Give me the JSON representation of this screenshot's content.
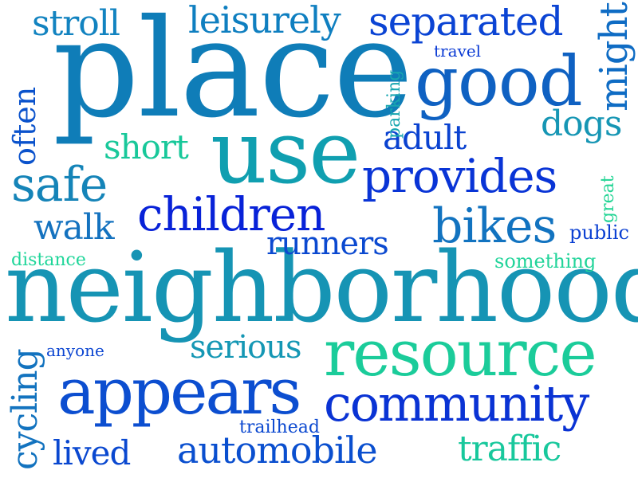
{
  "words": [
    {
      "text": "place",
      "color": "#0f7db8"
    },
    {
      "text": "neighborhood",
      "color": "#1694b4"
    },
    {
      "text": "use",
      "color": "#109fb0"
    },
    {
      "text": "good",
      "color": "#0f61c2"
    },
    {
      "text": "resource",
      "color": "#1bcc9a"
    },
    {
      "text": "appears",
      "color": "#0c4ed0"
    },
    {
      "text": "community",
      "color": "#0a33d4"
    },
    {
      "text": "children",
      "color": "#0822d8"
    },
    {
      "text": "provides",
      "color": "#0934d6"
    },
    {
      "text": "bikes",
      "color": "#1273c0"
    },
    {
      "text": "safe",
      "color": "#1584b8"
    },
    {
      "text": "separated",
      "color": "#0b44d4"
    },
    {
      "text": "leisurely",
      "color": "#0f7fc0"
    },
    {
      "text": "stroll",
      "color": "#1283c0"
    },
    {
      "text": "might",
      "color": "#0f6cc4"
    },
    {
      "text": "often",
      "color": "#0a52cc"
    },
    {
      "text": "short",
      "color": "#18c89a"
    },
    {
      "text": "adult",
      "color": "#0a42d0"
    },
    {
      "text": "dogs",
      "color": "#1696b4"
    },
    {
      "text": "walk",
      "color": "#1472bf"
    },
    {
      "text": "runners",
      "color": "#0b49d0"
    },
    {
      "text": "serious",
      "color": "#1597b4"
    },
    {
      "text": "automobile",
      "color": "#0a4fcf"
    },
    {
      "text": "traffic",
      "color": "#18c89c"
    },
    {
      "text": "lived",
      "color": "#0a48d0"
    },
    {
      "text": "cycling",
      "color": "#1373bf"
    },
    {
      "text": "anyone",
      "color": "#0b45d1"
    },
    {
      "text": "trailhead",
      "color": "#0c49d0"
    },
    {
      "text": "travel",
      "color": "#0a3ad4"
    },
    {
      "text": "parking",
      "color": "#17a6b0"
    },
    {
      "text": "great",
      "color": "#22d494"
    },
    {
      "text": "public",
      "color": "#0a3fd2"
    },
    {
      "text": "something",
      "color": "#22d49a"
    },
    {
      "text": "distance",
      "color": "#20d69a"
    }
  ]
}
